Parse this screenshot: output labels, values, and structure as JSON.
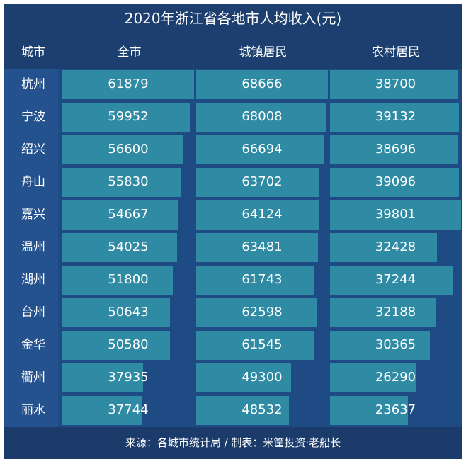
{
  "title": "2020年浙江省各地市人均收入(元)",
  "headers": [
    "城市",
    "全市",
    "城镇居民",
    "农村居民"
  ],
  "source": "来源：各城市统计局 / 制表：米筐投资·老船长",
  "colors": {
    "bar": "#2f8aa3",
    "background": "#1f4b85",
    "header": "#1c3f6f",
    "text": "#ffffff"
  },
  "rows": [
    {
      "city": "杭州",
      "all": "61879",
      "urban": "68666",
      "rural": "38700"
    },
    {
      "city": "宁波",
      "all": "59952",
      "urban": "68008",
      "rural": "39132"
    },
    {
      "city": "绍兴",
      "all": "56600",
      "urban": "66694",
      "rural": "38696"
    },
    {
      "city": "舟山",
      "all": "55830",
      "urban": "63702",
      "rural": "39096"
    },
    {
      "city": "嘉兴",
      "all": "54667",
      "urban": "64124",
      "rural": "39801"
    },
    {
      "city": "温州",
      "all": "54025",
      "urban": "63481",
      "rural": "32428"
    },
    {
      "city": "湖州",
      "all": "51800",
      "urban": "61743",
      "rural": "37244"
    },
    {
      "city": "台州",
      "all": "50643",
      "urban": "62598",
      "rural": "32188"
    },
    {
      "city": "金华",
      "all": "50580",
      "urban": "61545",
      "rural": "30365"
    },
    {
      "city": "衢州",
      "all": "37935",
      "urban": "49300",
      "rural": "26290"
    },
    {
      "city": "丽水",
      "all": "37744",
      "urban": "48532",
      "rural": "23637"
    }
  ],
  "chart_data": {
    "type": "bar",
    "title": "2020年浙江省各地市人均收入(元)",
    "xlabel": "城市",
    "ylabel": "人均收入(元)",
    "categories": [
      "杭州",
      "宁波",
      "绍兴",
      "舟山",
      "嘉兴",
      "温州",
      "湖州",
      "台州",
      "金华",
      "衢州",
      "丽水"
    ],
    "series": [
      {
        "name": "全市",
        "values": [
          61879,
          59952,
          56600,
          55830,
          54667,
          54025,
          51800,
          50643,
          50580,
          37935,
          37744
        ]
      },
      {
        "name": "城镇居民",
        "values": [
          68666,
          68008,
          66694,
          63702,
          64124,
          63481,
          61743,
          62598,
          61545,
          49300,
          48532
        ]
      },
      {
        "name": "农村居民",
        "values": [
          38700,
          39132,
          38696,
          39096,
          39801,
          32428,
          37244,
          32188,
          30365,
          26290,
          23637
        ]
      }
    ],
    "orientation": "horizontal",
    "grid": false,
    "legend": "column headers",
    "annotations": [
      "来源：各城市统计局 / 制表：米筐投资·老船长"
    ]
  }
}
